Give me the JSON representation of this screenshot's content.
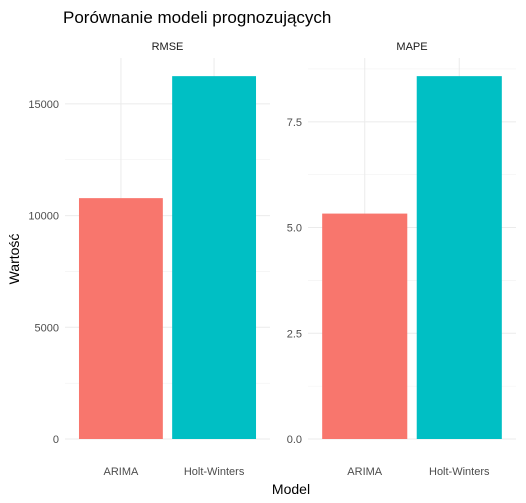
{
  "chart_data": {
    "type": "bar",
    "title": "Porównanie modeli prognozujących",
    "xlabel": "Model",
    "ylabel": "Wartość",
    "categories": [
      "ARIMA",
      "Holt-Winters"
    ],
    "colors": {
      "ARIMA": "#F8766D",
      "Holt-Winters": "#00BFC4"
    },
    "grid": true,
    "legend": "none",
    "facets": [
      {
        "name": "RMSE",
        "values": [
          10780,
          16240
        ],
        "ylim": [
          0,
          16240
        ],
        "yticks": [
          0,
          5000,
          10000,
          15000
        ],
        "ytick_labels": [
          "0",
          "5000",
          "10000",
          "15000"
        ]
      },
      {
        "name": "MAPE",
        "values": [
          5.33,
          8.58
        ],
        "ylim": [
          0,
          8.58
        ],
        "yticks": [
          0,
          2.5,
          5,
          7.5
        ],
        "ytick_labels": [
          "0.0",
          "2.5",
          "5.0",
          "7.5"
        ]
      }
    ]
  }
}
